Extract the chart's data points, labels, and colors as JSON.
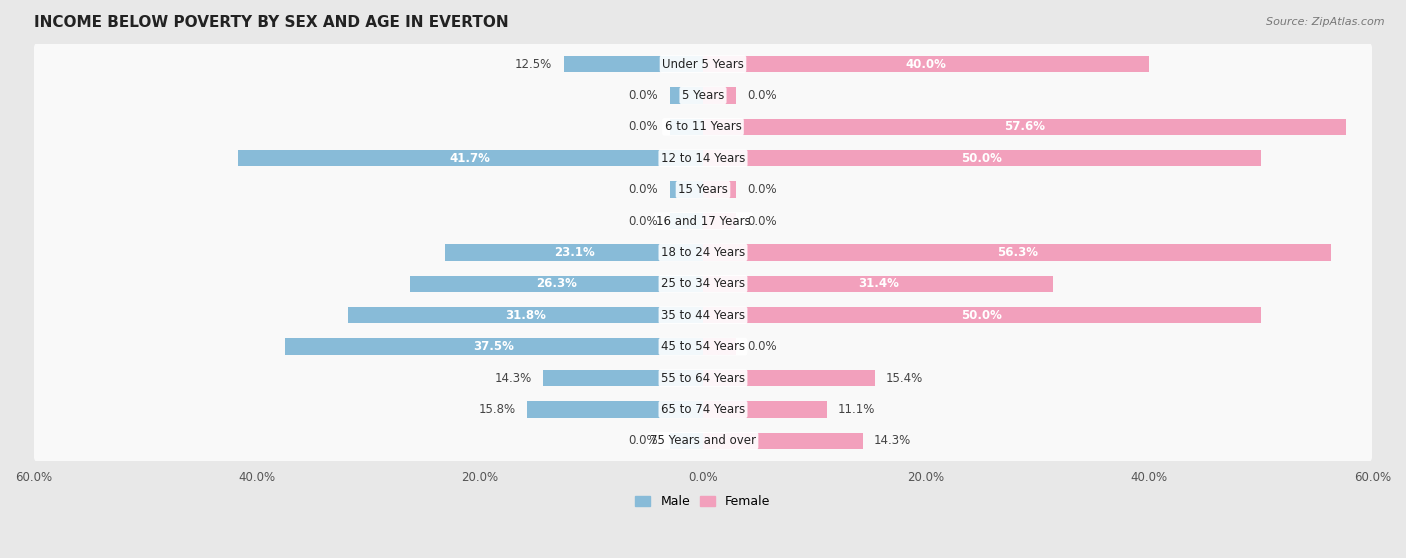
{
  "title": "INCOME BELOW POVERTY BY SEX AND AGE IN EVERTON",
  "source": "Source: ZipAtlas.com",
  "categories": [
    "Under 5 Years",
    "5 Years",
    "6 to 11 Years",
    "12 to 14 Years",
    "15 Years",
    "16 and 17 Years",
    "18 to 24 Years",
    "25 to 34 Years",
    "35 to 44 Years",
    "45 to 54 Years",
    "55 to 64 Years",
    "65 to 74 Years",
    "75 Years and over"
  ],
  "male": [
    12.5,
    0.0,
    0.0,
    41.7,
    0.0,
    0.0,
    23.1,
    26.3,
    31.8,
    37.5,
    14.3,
    15.8,
    0.0
  ],
  "female": [
    40.0,
    0.0,
    57.6,
    50.0,
    0.0,
    0.0,
    56.3,
    31.4,
    50.0,
    0.0,
    15.4,
    11.1,
    14.3
  ],
  "male_color": "#88bbd8",
  "female_color": "#f2a0bc",
  "axis_max": 60.0,
  "bg_dark": "#e0e0e0",
  "bg_light": "#ebebeb",
  "row_bg_color": "#f7f7f7",
  "title_fontsize": 11,
  "label_fontsize": 8.5,
  "tick_fontsize": 8.5,
  "stub_size": 3.0,
  "legend_male": "Male",
  "legend_female": "Female"
}
